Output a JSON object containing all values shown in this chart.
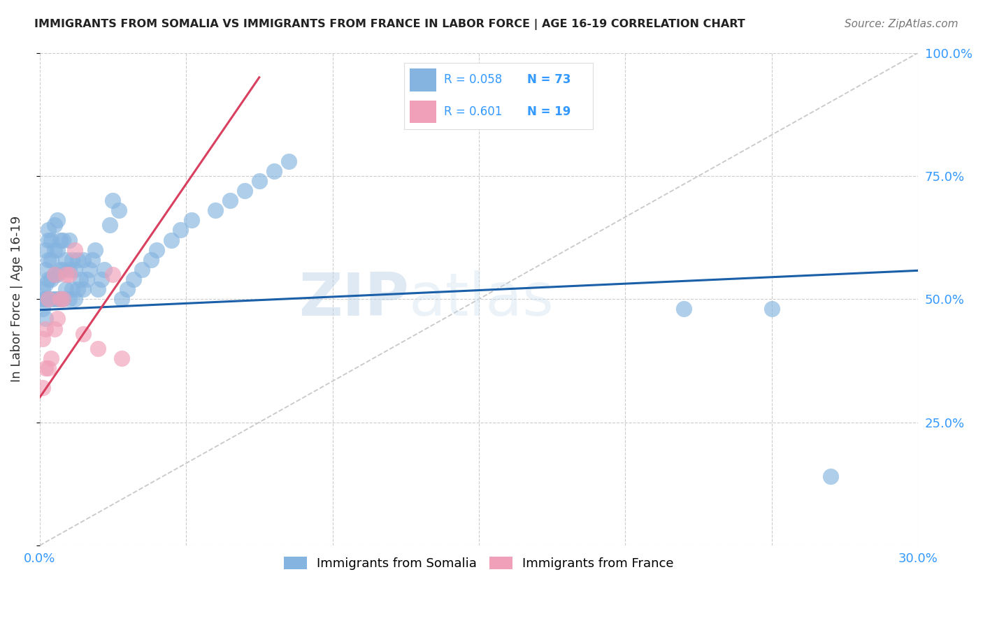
{
  "title": "IMMIGRANTS FROM SOMALIA VS IMMIGRANTS FROM FRANCE IN LABOR FORCE | AGE 16-19 CORRELATION CHART",
  "source": "Source: ZipAtlas.com",
  "ylabel": "In Labor Force | Age 16-19",
  "xlim": [
    0.0,
    0.3
  ],
  "ylim": [
    0.0,
    1.0
  ],
  "legend_somalia": "Immigrants from Somalia",
  "legend_france": "Immigrants from France",
  "R_somalia": "0.058",
  "N_somalia": "73",
  "R_france": "0.601",
  "N_france": "19",
  "color_somalia": "#85b4e0",
  "color_france": "#f0a0b8",
  "color_line_somalia": "#1a5fa8",
  "color_line_france": "#d94060",
  "color_diag": "#bbbbbb",
  "background": "#ffffff",
  "watermark_zip": "ZIP",
  "watermark_atlas": "atlas",
  "somalia_x": [
    0.001,
    0.001,
    0.001,
    0.002,
    0.002,
    0.002,
    0.002,
    0.002,
    0.003,
    0.003,
    0.003,
    0.003,
    0.003,
    0.004,
    0.004,
    0.004,
    0.004,
    0.005,
    0.005,
    0.005,
    0.005,
    0.006,
    0.006,
    0.006,
    0.006,
    0.007,
    0.007,
    0.007,
    0.008,
    0.008,
    0.008,
    0.009,
    0.009,
    0.01,
    0.01,
    0.01,
    0.011,
    0.011,
    0.012,
    0.012,
    0.013,
    0.013,
    0.014,
    0.015,
    0.015,
    0.016,
    0.017,
    0.018,
    0.019,
    0.02,
    0.021,
    0.022,
    0.024,
    0.025,
    0.027,
    0.028,
    0.03,
    0.032,
    0.035,
    0.038,
    0.04,
    0.045,
    0.048,
    0.052,
    0.06,
    0.065,
    0.07,
    0.075,
    0.08,
    0.085,
    0.22,
    0.25,
    0.27
  ],
  "somalia_y": [
    0.48,
    0.5,
    0.52,
    0.46,
    0.5,
    0.53,
    0.56,
    0.6,
    0.5,
    0.54,
    0.58,
    0.62,
    0.64,
    0.5,
    0.54,
    0.58,
    0.62,
    0.5,
    0.55,
    0.6,
    0.65,
    0.5,
    0.55,
    0.6,
    0.66,
    0.5,
    0.56,
    0.62,
    0.5,
    0.56,
    0.62,
    0.52,
    0.58,
    0.5,
    0.56,
    0.62,
    0.52,
    0.58,
    0.5,
    0.56,
    0.52,
    0.58,
    0.54,
    0.52,
    0.58,
    0.54,
    0.56,
    0.58,
    0.6,
    0.52,
    0.54,
    0.56,
    0.65,
    0.7,
    0.68,
    0.5,
    0.52,
    0.54,
    0.56,
    0.58,
    0.6,
    0.62,
    0.64,
    0.66,
    0.68,
    0.7,
    0.72,
    0.74,
    0.76,
    0.78,
    0.48,
    0.48,
    0.14
  ],
  "france_x": [
    0.001,
    0.001,
    0.002,
    0.002,
    0.003,
    0.003,
    0.004,
    0.005,
    0.005,
    0.006,
    0.007,
    0.008,
    0.009,
    0.01,
    0.012,
    0.015,
    0.02,
    0.025,
    0.028
  ],
  "france_y": [
    0.32,
    0.42,
    0.36,
    0.44,
    0.36,
    0.5,
    0.38,
    0.44,
    0.55,
    0.46,
    0.5,
    0.5,
    0.55,
    0.55,
    0.6,
    0.43,
    0.4,
    0.55,
    0.38
  ],
  "somalia_line_x": [
    0.0,
    0.3
  ],
  "somalia_line_y": [
    0.478,
    0.558
  ],
  "france_line_x": [
    0.0,
    0.075
  ],
  "france_line_y": [
    0.3,
    0.95
  ]
}
